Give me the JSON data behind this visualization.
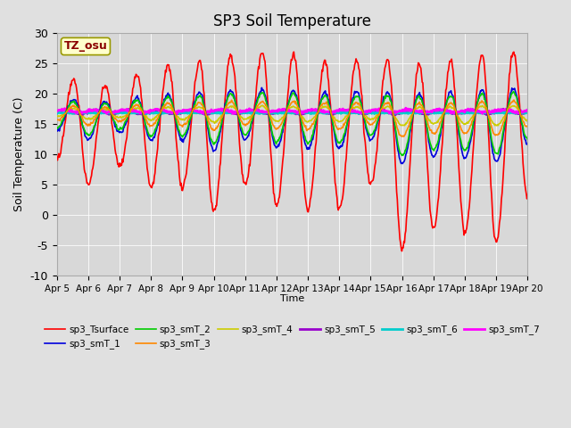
{
  "title": "SP3 Soil Temperature",
  "ylabel": "Soil Temperature (C)",
  "xlabel": "Time",
  "ylim": [
    -10,
    30
  ],
  "fig_bg": "#e0e0e0",
  "plot_bg": "#d8d8d8",
  "tz_label": "TZ_osu",
  "tz_label_color": "#8b0000",
  "tz_box_facecolor": "#ffffcc",
  "tz_box_edgecolor": "#999900",
  "series": [
    "sp3_Tsurface",
    "sp3_smT_1",
    "sp3_smT_2",
    "sp3_smT_3",
    "sp3_smT_4",
    "sp3_smT_5",
    "sp3_smT_6",
    "sp3_smT_7"
  ],
  "series_colors": [
    "#ff0000",
    "#0000dd",
    "#00cc00",
    "#ff8800",
    "#cccc00",
    "#9900cc",
    "#00cccc",
    "#ff00ff"
  ],
  "series_lw": [
    1.2,
    1.2,
    1.2,
    1.2,
    1.2,
    2.0,
    2.0,
    2.0
  ],
  "xtick_labels": [
    "Apr 5",
    "Apr 6",
    "Apr 7",
    "Apr 8",
    "Apr 9",
    "Apr 10",
    "Apr 11",
    "Apr 12",
    "Apr 13",
    "Apr 14",
    "Apr 15",
    "Apr 16",
    "Apr 17",
    "Apr 18",
    "Apr 19",
    "Apr 20"
  ],
  "ytick_values": [
    -10,
    -5,
    0,
    5,
    10,
    15,
    20,
    25,
    30
  ],
  "days": 15,
  "pts_per_day": 48,
  "base_temp": 17.0,
  "surface_night_mins": [
    9,
    5,
    8,
    4.5,
    4.5,
    0.5,
    5,
    1.5,
    1,
    1,
    5,
    -5.5,
    -2.5,
    -3,
    -4.5,
    3
  ],
  "surface_day_maxs": [
    23,
    22,
    21,
    25,
    24.5,
    26,
    26.5,
    27,
    26,
    25,
    26,
    25,
    25,
    26,
    27,
    27
  ],
  "legend_ncol_row1": 6,
  "legend_ncol_row2": 2
}
